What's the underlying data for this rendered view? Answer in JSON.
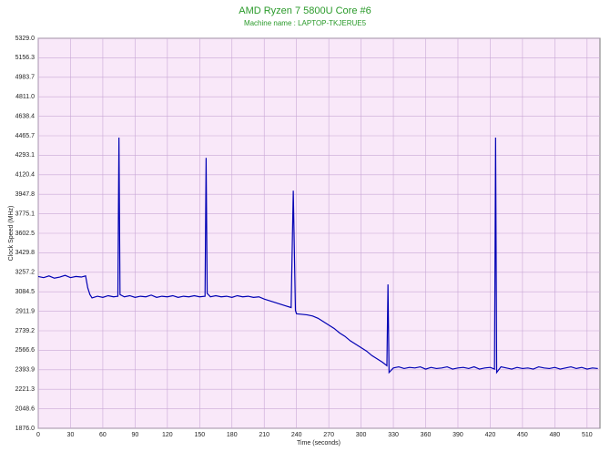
{
  "chart_data": {
    "type": "line",
    "title": "AMD Ryzen 7 5800U Core #6",
    "subtitle": "Machine name : LAPTOP-TKJERUE5",
    "x_label": "Time (seconds)",
    "y_label": "Clock Speed (MHz)",
    "grid": true,
    "xlim": [
      0,
      522
    ],
    "ylim": [
      1876.0,
      5329.0
    ],
    "xticks": [
      0,
      30,
      60,
      90,
      120,
      150,
      180,
      210,
      240,
      270,
      300,
      330,
      360,
      390,
      420,
      450,
      480,
      510
    ],
    "yticks": [
      {
        "value": 1876,
        "label": "1876.0"
      },
      2048.6,
      2221.3,
      2393.9,
      2566.6,
      2739.2,
      2911.9,
      3084.5,
      3257.2,
      3429.8,
      3602.5,
      3775.1,
      3947.8,
      4120.4,
      4293.1,
      4465.7,
      4638.4,
      {
        "value": 4811,
        "label": "4811.0"
      },
      4983.7,
      5156.3,
      {
        "value": 5329,
        "label": "5329.0"
      }
    ],
    "x": [
      0,
      5,
      10,
      15,
      20,
      25,
      30,
      35,
      40,
      44,
      46,
      48,
      50,
      55,
      60,
      65,
      70,
      74,
      75,
      76,
      80,
      85,
      90,
      95,
      100,
      105,
      110,
      115,
      120,
      125,
      130,
      135,
      140,
      145,
      150,
      155,
      156,
      157,
      160,
      165,
      170,
      175,
      180,
      185,
      190,
      195,
      200,
      205,
      210,
      215,
      220,
      225,
      230,
      235,
      237,
      239,
      240,
      245,
      250,
      255,
      260,
      265,
      270,
      275,
      280,
      285,
      290,
      295,
      300,
      305,
      310,
      315,
      320,
      324,
      325,
      326,
      330,
      335,
      340,
      345,
      350,
      355,
      360,
      365,
      370,
      375,
      380,
      385,
      390,
      395,
      400,
      405,
      410,
      415,
      420,
      424,
      425,
      426,
      430,
      435,
      440,
      445,
      450,
      455,
      460,
      465,
      470,
      475,
      480,
      485,
      490,
      495,
      500,
      505,
      510,
      515,
      520
    ],
    "series": [
      {
        "name": "Core #6",
        "color": "#0000b4",
        "values": [
          3220,
          3210,
          3225,
          3205,
          3215,
          3230,
          3210,
          3220,
          3215,
          3225,
          3120,
          3060,
          3030,
          3045,
          3035,
          3050,
          3040,
          3045,
          4450,
          3060,
          3040,
          3050,
          3035,
          3045,
          3040,
          3055,
          3035,
          3045,
          3040,
          3050,
          3035,
          3045,
          3040,
          3050,
          3040,
          3045,
          4270,
          3070,
          3040,
          3050,
          3040,
          3045,
          3035,
          3050,
          3040,
          3045,
          3035,
          3040,
          3020,
          3005,
          2990,
          2975,
          2960,
          2945,
          3980,
          2920,
          2890,
          2885,
          2880,
          2870,
          2850,
          2820,
          2790,
          2760,
          2720,
          2690,
          2650,
          2620,
          2590,
          2560,
          2520,
          2490,
          2460,
          2430,
          3150,
          2370,
          2410,
          2420,
          2405,
          2415,
          2410,
          2420,
          2400,
          2415,
          2405,
          2410,
          2420,
          2400,
          2410,
          2415,
          2405,
          2420,
          2400,
          2410,
          2415,
          2400,
          4450,
          2370,
          2420,
          2410,
          2400,
          2415,
          2405,
          2410,
          2400,
          2420,
          2410,
          2405,
          2415,
          2400,
          2410,
          2420,
          2405,
          2415,
          2400,
          2410,
          2405
        ]
      }
    ]
  }
}
